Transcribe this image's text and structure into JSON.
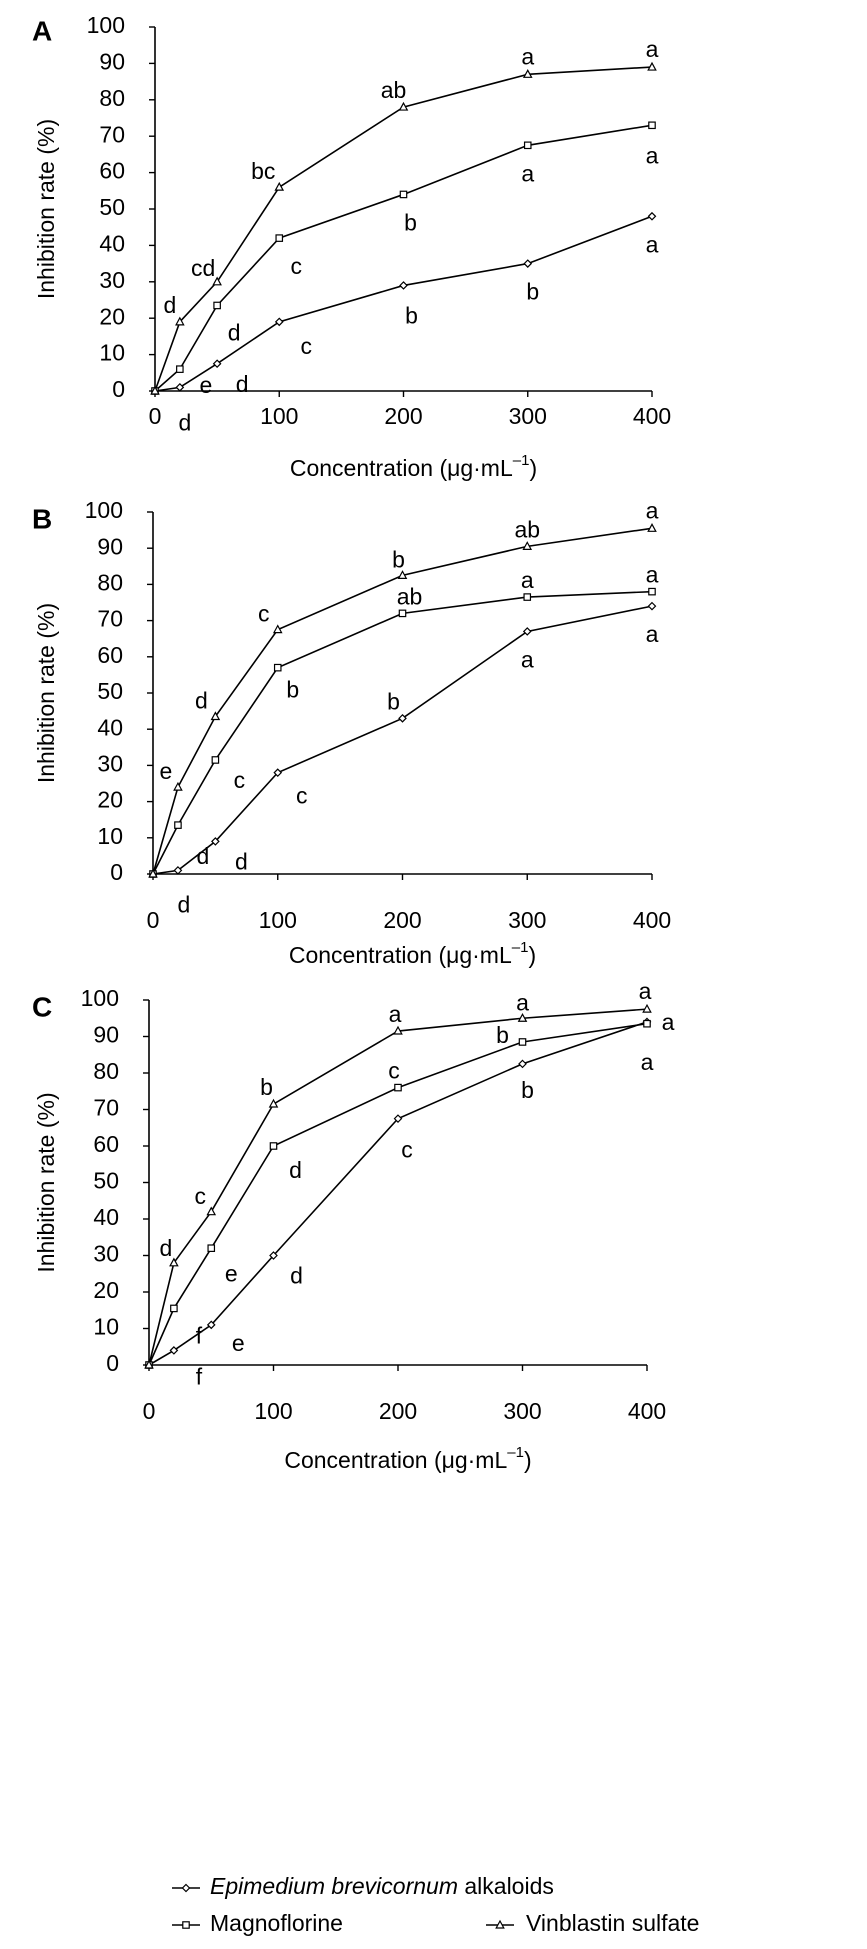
{
  "legend": {
    "items": [
      {
        "label": "Epimedium brevicornum alkaloids",
        "marker": "diamond"
      },
      {
        "label": "Magnoflorine",
        "marker": "square"
      },
      {
        "label": "Vinblastin sulfate",
        "marker": "triangle"
      }
    ],
    "placement": "bottom-center"
  },
  "chart_data": [
    {
      "panel": "A",
      "type": "line",
      "xlabel": "Concentration (μg·mL–1)",
      "xlabel_main": "Concentration  (μg·mL",
      "xlabel_sup": "–1",
      "xlabel_end": ")",
      "ylabel": "Inhibition rate (%)",
      "x": [
        0,
        20,
        50,
        100,
        200,
        300,
        400
      ],
      "xticks": [
        0,
        100,
        200,
        300,
        400
      ],
      "yticks": [
        0,
        10,
        20,
        30,
        40,
        50,
        60,
        70,
        80,
        90,
        100
      ],
      "xlim": [
        0,
        400
      ],
      "ylim": [
        0,
        100
      ],
      "series": [
        {
          "name": "Epimedium brevicornum alkaloids",
          "marker": "diamond",
          "values": [
            0,
            1,
            7.5,
            19,
            29,
            35,
            48
          ],
          "labels": [
            "",
            "d",
            "d",
            "c",
            "b",
            "b",
            "a"
          ]
        },
        {
          "name": "Magnoflorine",
          "marker": "square",
          "values": [
            0,
            6,
            23.5,
            42,
            54,
            67.5,
            73
          ],
          "labels": [
            "",
            "e",
            "d",
            "c",
            "b",
            "a",
            "a"
          ]
        },
        {
          "name": "Vinblastin sulfate",
          "marker": "triangle",
          "values": [
            0,
            19,
            30,
            56,
            78,
            87,
            89
          ],
          "labels": [
            "",
            "d",
            "cd",
            "bc",
            "ab",
            "a",
            "a"
          ]
        }
      ]
    },
    {
      "panel": "B",
      "type": "line",
      "xlabel": "Concentration (μg·mL–1)",
      "xlabel_main": "Concentration  (μg·mL",
      "xlabel_sup": "–1",
      "xlabel_end": ")",
      "ylabel": "Inhibition rate (%)",
      "x": [
        0,
        20,
        50,
        100,
        200,
        300,
        400
      ],
      "xticks": [
        0,
        100,
        200,
        300,
        400
      ],
      "yticks": [
        0,
        10,
        20,
        30,
        40,
        50,
        60,
        70,
        80,
        90,
        100
      ],
      "xlim": [
        0,
        400
      ],
      "ylim": [
        0,
        100
      ],
      "series": [
        {
          "name": "Epimedium brevicornum alkaloids",
          "marker": "diamond",
          "values": [
            0,
            1,
            9,
            28,
            43,
            67,
            74
          ],
          "labels": [
            "",
            "d",
            "d",
            "c",
            "b",
            "a",
            "a"
          ]
        },
        {
          "name": "Magnoflorine",
          "marker": "square",
          "values": [
            0,
            13.5,
            31.5,
            57,
            72,
            76.5,
            78
          ],
          "labels": [
            "",
            "d",
            "c",
            "b",
            "ab",
            "a",
            "a"
          ]
        },
        {
          "name": "Vinblastin sulfate",
          "marker": "triangle",
          "values": [
            0,
            24,
            43.5,
            67.5,
            82.5,
            90.5,
            95.5
          ],
          "labels": [
            "",
            "e",
            "d",
            "c",
            "b",
            "ab",
            "a"
          ]
        }
      ]
    },
    {
      "panel": "C",
      "type": "line",
      "xlabel": "Concentration (μg·mL–1)",
      "xlabel_main": "Concentration  (μg·mL",
      "xlabel_sup": "–1",
      "xlabel_end": ")",
      "ylabel": "Inhibition rate (%)",
      "x": [
        0,
        20,
        50,
        100,
        200,
        300,
        400
      ],
      "xticks": [
        0,
        100,
        200,
        300,
        400
      ],
      "yticks": [
        0,
        10,
        20,
        30,
        40,
        50,
        60,
        70,
        80,
        90,
        100
      ],
      "xlim": [
        0,
        400
      ],
      "ylim": [
        0,
        100
      ],
      "series": [
        {
          "name": "Epimedium brevicornum alkaloids",
          "marker": "diamond",
          "values": [
            0,
            4,
            11,
            30,
            67.5,
            82.5,
            94
          ],
          "labels": [
            "",
            "f",
            "e",
            "d",
            "c",
            "b",
            "a"
          ]
        },
        {
          "name": "Magnoflorine",
          "marker": "square",
          "values": [
            0,
            15.5,
            32,
            60,
            76,
            88.5,
            93.5
          ],
          "labels": [
            "",
            "f",
            "e",
            "d",
            "c",
            "b",
            "a"
          ]
        },
        {
          "name": "Vinblastin sulfate",
          "marker": "triangle",
          "values": [
            0,
            28,
            42,
            71.5,
            91.5,
            95,
            97.5
          ],
          "labels": [
            "",
            "d",
            "c",
            "b",
            "a",
            "a",
            "a"
          ]
        }
      ]
    }
  ]
}
